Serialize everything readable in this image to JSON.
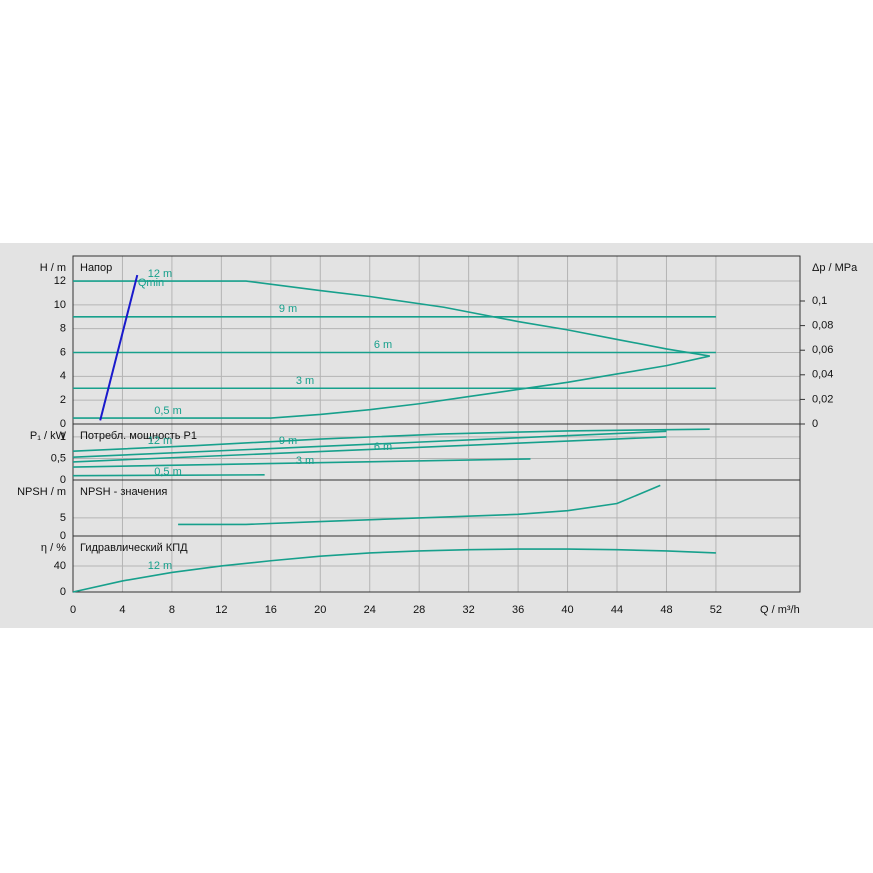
{
  "chart_data": [
    {
      "type": "line",
      "title": "Напор",
      "ylabel": "H / m",
      "y2label": "Δp / MPa",
      "xlim": [
        0,
        58.8
      ],
      "ylim": [
        0,
        14.1
      ],
      "yticks": [
        0,
        2,
        4,
        6,
        8,
        10,
        12
      ],
      "y2lim": [
        0,
        0.1366
      ],
      "y2ticks": [
        0,
        {
          "value": 0.02,
          "label": "0,02"
        },
        {
          "value": 0.04,
          "label": "0,04"
        },
        {
          "value": 0.06,
          "label": "0,06"
        },
        {
          "value": 0.08,
          "label": "0,08"
        },
        {
          "value": 0.1,
          "label": "0,1"
        }
      ],
      "grid": true,
      "series": [
        {
          "name": "12 m",
          "color": "#17a08c",
          "x": [
            0,
            14,
            20,
            24,
            30,
            36,
            40,
            44,
            48,
            51.5
          ],
          "values": [
            12,
            12,
            11.2,
            10.7,
            9.8,
            8.6,
            7.9,
            7.1,
            6.3,
            5.7
          ]
        },
        {
          "name": "9 m",
          "color": "#17a08c",
          "x": [
            0,
            52
          ],
          "values": [
            9,
            9
          ]
        },
        {
          "name": "6 m",
          "color": "#17a08c",
          "x": [
            0,
            52
          ],
          "values": [
            6,
            6
          ]
        },
        {
          "name": "3 m",
          "color": "#17a08c",
          "x": [
            0,
            52
          ],
          "values": [
            3,
            3
          ]
        },
        {
          "name": "0,5 m",
          "color": "#17a08c",
          "x": [
            0,
            16,
            20,
            24,
            28,
            32,
            36,
            40,
            44,
            48,
            51.5
          ],
          "values": [
            0.5,
            0.5,
            0.8,
            1.2,
            1.7,
            2.3,
            2.9,
            3.5,
            4.2,
            4.9,
            5.7
          ]
        },
        {
          "name": "Qmin",
          "color": "#1a1acc",
          "x": [
            2.2,
            5.2
          ],
          "values": [
            0.3,
            12.5
          ]
        }
      ]
    },
    {
      "type": "line",
      "title": "Потребл. мощность P1",
      "ylabel": "P₁ / kW",
      "xlim": [
        0,
        58.8
      ],
      "ylim": [
        0,
        1.3
      ],
      "yticks": [
        0,
        {
          "value": 0.5,
          "label": "0,5"
        },
        1
      ],
      "grid": true,
      "series": [
        {
          "name": "12 m",
          "color": "#17a08c",
          "x": [
            0,
            10,
            20,
            30,
            40,
            51.5
          ],
          "values": [
            0.67,
            0.8,
            0.95,
            1.07,
            1.14,
            1.18
          ]
        },
        {
          "name": "9 m",
          "color": "#17a08c",
          "x": [
            0,
            48
          ],
          "values": [
            0.53,
            1.13
          ]
        },
        {
          "name": "6 m",
          "color": "#17a08c",
          "x": [
            0,
            48
          ],
          "values": [
            0.42,
            1.0
          ]
        },
        {
          "name": "3 m",
          "color": "#17a08c",
          "x": [
            0,
            37
          ],
          "values": [
            0.3,
            0.49
          ]
        },
        {
          "name": "0,5 m",
          "color": "#17a08c",
          "x": [
            0,
            15.5
          ],
          "values": [
            0.1,
            0.12
          ]
        }
      ]
    },
    {
      "type": "line",
      "title": "NPSH - значения",
      "ylabel": "NPSH / m",
      "xlim": [
        0,
        58.8
      ],
      "ylim": [
        0,
        15.5
      ],
      "yticks": [
        0,
        5
      ],
      "grid": true,
      "series": [
        {
          "color": "#17a08c",
          "x": [
            8.5,
            14,
            20,
            28,
            36,
            40,
            44,
            47.5
          ],
          "values": [
            3.2,
            3.2,
            4,
            5,
            6,
            7,
            9,
            14
          ]
        }
      ]
    },
    {
      "type": "line",
      "title": "Гидравлический КПД",
      "ylabel": "η / %",
      "xlabel": "Q / m³/h",
      "xlim": [
        0,
        58.8
      ],
      "ylim": [
        0,
        86
      ],
      "yticks": [
        0,
        40
      ],
      "xticks": [
        0,
        4,
        8,
        12,
        16,
        20,
        24,
        28,
        32,
        36,
        40,
        44,
        48,
        52
      ],
      "grid": true,
      "series": [
        {
          "name": "12 m",
          "color": "#17a08c",
          "x": [
            0,
            4,
            8,
            12,
            16,
            20,
            24,
            28,
            32,
            36,
            40,
            44,
            48,
            52
          ],
          "values": [
            0,
            17,
            30,
            40,
            48,
            55,
            60,
            63,
            65,
            66,
            66,
            65,
            63,
            60
          ]
        }
      ]
    }
  ]
}
